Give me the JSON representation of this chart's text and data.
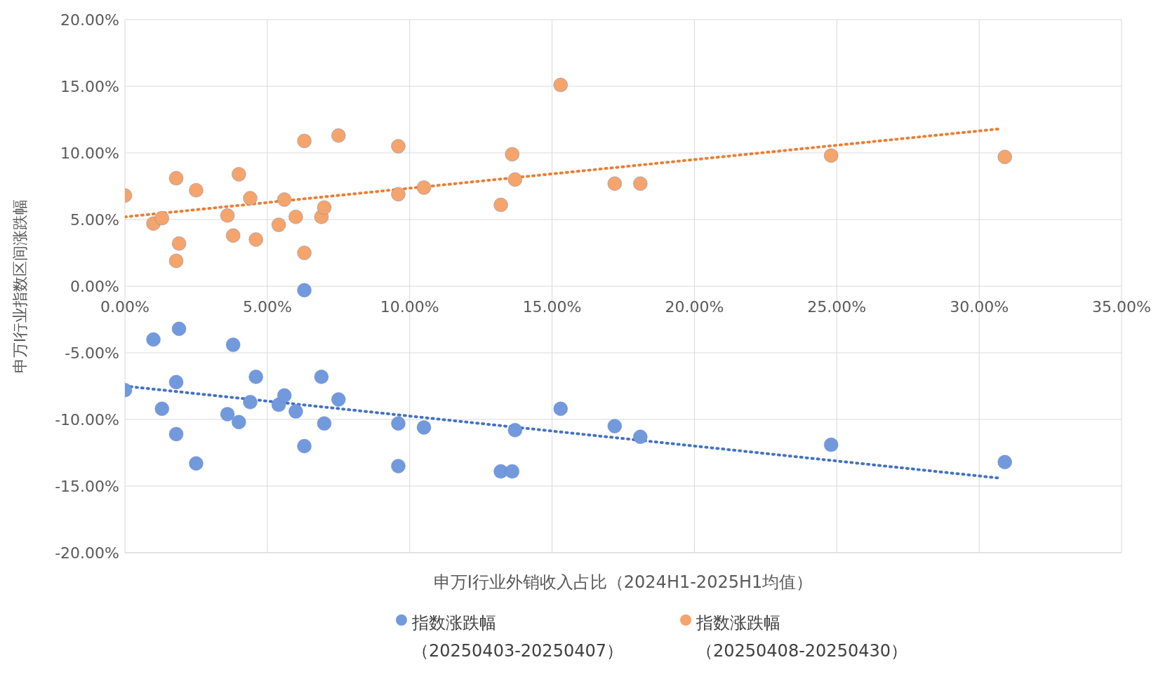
{
  "chart_data": {
    "type": "scatter",
    "xlabel": "申万Ⅰ行业外销收入占比（2024H1-2025H1均值）",
    "ylabel": "申万Ⅰ行业指数区间涨跌幅",
    "xlim": [
      0,
      35
    ],
    "xticks": [
      {
        "value": 0,
        "label": "0.00%"
      },
      {
        "value": 5,
        "label": "5.00%"
      },
      {
        "value": 10,
        "label": "10.00%"
      },
      {
        "value": 15,
        "label": "15.00%"
      },
      {
        "value": 20,
        "label": "20.00%"
      },
      {
        "value": 25,
        "label": "25.00%"
      },
      {
        "value": 30,
        "label": "30.00%"
      },
      {
        "value": 35,
        "label": "35.00%"
      }
    ],
    "ylim": [
      -20,
      20
    ],
    "yticks": [
      {
        "value": -20,
        "label": "-20.00%"
      },
      {
        "value": -15,
        "label": "-15.00%"
      },
      {
        "value": -10,
        "label": "-10.00%"
      },
      {
        "value": -5,
        "label": "-5.00%"
      },
      {
        "value": 0,
        "label": "0.00%"
      },
      {
        "value": 5,
        "label": "5.00%"
      },
      {
        "value": 10,
        "label": "10.00%"
      },
      {
        "value": 15,
        "label": "15.00%"
      },
      {
        "value": 20,
        "label": "20.00%"
      }
    ],
    "grid": true,
    "legend": "bottom",
    "marker": "circle",
    "series": [
      {
        "name": "指数涨跌幅（20250403-20250407）",
        "color": "#7399dd",
        "x": [
          0.0,
          1.0,
          1.3,
          1.8,
          1.8,
          1.9,
          2.5,
          3.6,
          3.8,
          4.0,
          4.4,
          4.6,
          5.4,
          5.6,
          6.0,
          6.3,
          6.3,
          6.9,
          7.0,
          7.5,
          9.6,
          9.6,
          10.5,
          13.2,
          13.6,
          13.7,
          15.3,
          17.2,
          18.1,
          24.8,
          30.9
        ],
        "values": [
          -7.8,
          -4.0,
          -9.2,
          -11.1,
          -7.2,
          -3.2,
          -13.3,
          -9.6,
          -4.4,
          -10.2,
          -8.7,
          -6.8,
          -8.9,
          -8.2,
          -9.4,
          -0.3,
          -12.0,
          -6.8,
          -10.3,
          -8.5,
          -10.3,
          -13.5,
          -10.6,
          -13.9,
          -13.9,
          -10.8,
          -9.2,
          -10.5,
          -11.3,
          -11.9,
          -13.2
        ]
      },
      {
        "name": "指数涨跌幅（20250408-20250430）",
        "color": "#f5a46b",
        "x": [
          0.0,
          1.0,
          1.3,
          1.8,
          1.8,
          1.9,
          2.5,
          3.6,
          3.8,
          4.0,
          4.4,
          4.6,
          5.4,
          5.6,
          6.0,
          6.3,
          6.3,
          6.9,
          7.0,
          7.5,
          9.6,
          9.6,
          10.5,
          13.2,
          13.6,
          13.7,
          15.3,
          17.2,
          18.1,
          24.8,
          30.9
        ],
        "values": [
          6.8,
          4.7,
          5.1,
          8.1,
          1.9,
          3.2,
          7.2,
          5.3,
          3.8,
          8.4,
          6.6,
          3.5,
          4.6,
          6.5,
          5.2,
          10.9,
          2.5,
          5.2,
          5.9,
          11.3,
          10.5,
          6.9,
          7.4,
          6.1,
          9.9,
          8.0,
          15.1,
          7.7,
          7.7,
          9.8,
          9.7
        ]
      },
      {
        "type": "line",
        "color": "#4472c4",
        "line_style": "dotted",
        "marker": "none",
        "x": [
          0,
          30.7
        ],
        "values": [
          -7.5,
          -14.4
        ]
      },
      {
        "type": "line",
        "color": "#ed7d31",
        "line_style": "dotted",
        "marker": "none",
        "x": [
          0,
          30.7
        ],
        "values": [
          5.2,
          11.8
        ]
      }
    ]
  }
}
